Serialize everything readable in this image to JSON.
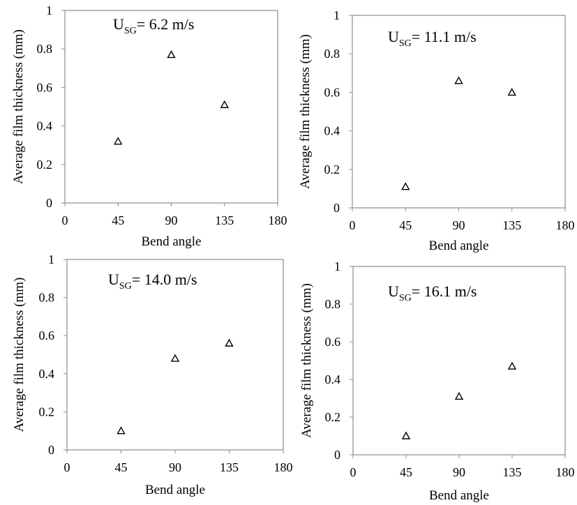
{
  "chart_data": [
    {
      "type": "scatter",
      "title": "U_SG= 6.2 m/s",
      "title_prefix": "U",
      "title_sub": "SG",
      "title_suffix": "= 6.2 m/s",
      "xlabel": "Bend angle",
      "ylabel": "Average film thickness (mm)",
      "xlim": [
        0,
        180
      ],
      "ylim": [
        0,
        1
      ],
      "xticks": [
        0,
        45,
        90,
        135,
        180
      ],
      "yticks": [
        0,
        0.2,
        0.4,
        0.6,
        0.8,
        1
      ],
      "yticklabels": [
        "0",
        "0.2",
        "0.4",
        "0.6",
        "0.8",
        "1"
      ],
      "grid": false,
      "marker": "triangle",
      "x": [
        45,
        90,
        135
      ],
      "y": [
        0.32,
        0.77,
        0.51
      ]
    },
    {
      "type": "scatter",
      "title": "U_SG= 11.1 m/s",
      "title_prefix": "U",
      "title_sub": "SG",
      "title_suffix": "= 11.1 m/s",
      "xlabel": "Bend angle",
      "ylabel": "Average film thickness (mm)",
      "xlim": [
        0,
        180
      ],
      "ylim": [
        0,
        1
      ],
      "xticks": [
        0,
        45,
        90,
        135,
        180
      ],
      "yticks": [
        0,
        0.2,
        0.4,
        0.6,
        0.8,
        1
      ],
      "yticklabels": [
        "0",
        "0.2",
        "0.4",
        "0.6",
        "0.8",
        "1"
      ],
      "grid": false,
      "marker": "triangle",
      "x": [
        45,
        90,
        135
      ],
      "y": [
        0.11,
        0.66,
        0.6
      ]
    },
    {
      "type": "scatter",
      "title": "U_SG= 14.0 m/s",
      "title_prefix": "U",
      "title_sub": "SG",
      "title_suffix": "= 14.0 m/s",
      "xlabel": "Bend angle",
      "ylabel": "Average film thickness (mm)",
      "xlim": [
        0,
        180
      ],
      "ylim": [
        0,
        1
      ],
      "xticks": [
        0,
        45,
        90,
        135,
        180
      ],
      "yticks": [
        0,
        0.2,
        0.4,
        0.6,
        0.8,
        1
      ],
      "yticklabels": [
        "0",
        "0.2",
        "0.4",
        "0.6",
        "0.8",
        "1"
      ],
      "grid": false,
      "marker": "triangle",
      "x": [
        45,
        90,
        135
      ],
      "y": [
        0.1,
        0.48,
        0.56
      ]
    },
    {
      "type": "scatter",
      "title": "U_SG= 16.1 m/s",
      "title_prefix": "U",
      "title_sub": "SG",
      "title_suffix": "= 16.1 m/s",
      "xlabel": "Bend angle",
      "ylabel": "Average film thickness (mm)",
      "xlim": [
        0,
        180
      ],
      "ylim": [
        0,
        1
      ],
      "xticks": [
        0,
        45,
        90,
        135,
        180
      ],
      "yticks": [
        0,
        0.2,
        0.4,
        0.6,
        0.8,
        1
      ],
      "yticklabels": [
        "0",
        "0.2",
        "0.4",
        "0.6",
        "0.8",
        "1"
      ],
      "grid": false,
      "marker": "triangle",
      "x": [
        45,
        90,
        135
      ],
      "y": [
        0.1,
        0.31,
        0.47
      ]
    }
  ]
}
